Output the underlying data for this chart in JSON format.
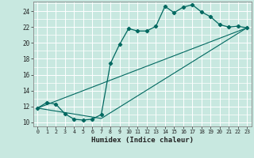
{
  "title": "",
  "xlabel": "Humidex (Indice chaleur)",
  "bg_color": "#c8e8e0",
  "grid_color": "#ffffff",
  "line_color": "#006860",
  "xlim": [
    -0.5,
    23.5
  ],
  "ylim": [
    9.5,
    25.2
  ],
  "xticks": [
    0,
    1,
    2,
    3,
    4,
    5,
    6,
    7,
    8,
    9,
    10,
    11,
    12,
    13,
    14,
    15,
    16,
    17,
    18,
    19,
    20,
    21,
    22,
    23
  ],
  "yticks": [
    10,
    12,
    14,
    16,
    18,
    20,
    22,
    24
  ],
  "series1_x": [
    0,
    1,
    2,
    3,
    4,
    5,
    6,
    7,
    8,
    9,
    10,
    11,
    12,
    13,
    14,
    15,
    16,
    17,
    18,
    19,
    20,
    21,
    22,
    23
  ],
  "series1_y": [
    11.8,
    12.5,
    12.3,
    11.1,
    10.4,
    10.3,
    10.4,
    11.0,
    17.4,
    19.8,
    21.8,
    21.5,
    21.5,
    22.1,
    24.6,
    23.8,
    24.5,
    24.8,
    23.9,
    23.3,
    22.3,
    22.0,
    22.1,
    21.9
  ],
  "series2_x": [
    0,
    23
  ],
  "series2_y": [
    11.8,
    21.9
  ],
  "series3_x": [
    0,
    7,
    23
  ],
  "series3_y": [
    11.8,
    10.5,
    21.9
  ]
}
